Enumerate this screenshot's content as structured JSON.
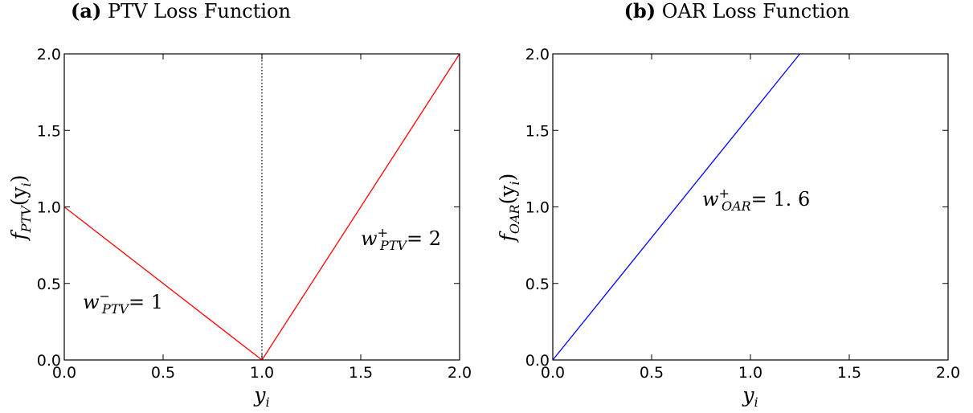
{
  "chart_data": [
    {
      "type": "line",
      "panel_tag": "(a)",
      "title": "PTV Loss Function",
      "xlabel": "y",
      "xlabel_sub": "i",
      "ylabel": "f",
      "ylabel_sub": "PTV",
      "ylabel_arg": "(y",
      "ylabel_arg_sub": "i",
      "ylabel_close": ")",
      "xlim": [
        0.0,
        2.0
      ],
      "ylim": [
        0.0,
        2.0
      ],
      "xticks": [
        "0.0",
        "0.5",
        "1.0",
        "1.5",
        "2.0"
      ],
      "yticks": [
        "0.0",
        "0.5",
        "1.0",
        "1.5",
        "2.0"
      ],
      "grid": false,
      "series": [
        {
          "x": [
            0.0,
            1.0
          ],
          "y": [
            1.0,
            0.0
          ],
          "color": "#ff0000",
          "style": "solid"
        },
        {
          "x": [
            1.0,
            2.0
          ],
          "y": [
            0.0,
            2.0
          ],
          "color": "#ff0000",
          "style": "solid"
        }
      ],
      "vlines": [
        {
          "x": 1.0,
          "color": "#000000",
          "style": "dotted"
        }
      ],
      "annotations": [
        {
          "base": "w",
          "sup": "−",
          "sub": "PTV",
          "rest": "= 1",
          "at_x": 0.1,
          "at_y": 0.35
        },
        {
          "base": "w",
          "sup": "+",
          "sub": "PTV",
          "rest": "= 2",
          "at_x": 1.5,
          "at_y": 0.78
        }
      ]
    },
    {
      "type": "line",
      "panel_tag": "(b)",
      "title": "OAR Loss Function",
      "xlabel": "y",
      "xlabel_sub": "i",
      "ylabel": "f",
      "ylabel_sub": "OAR",
      "ylabel_arg": "(y",
      "ylabel_arg_sub": "i",
      "ylabel_close": ")",
      "xlim": [
        0.0,
        2.0
      ],
      "ylim": [
        0.0,
        2.0
      ],
      "xticks": [
        "0.0",
        "0.5",
        "1.0",
        "1.5",
        "2.0"
      ],
      "yticks": [
        "0.0",
        "0.5",
        "1.0",
        "1.5",
        "2.0"
      ],
      "grid": false,
      "series": [
        {
          "x": [
            0.0,
            1.25
          ],
          "y": [
            0.0,
            2.0
          ],
          "color": "#0000ff",
          "style": "solid"
        }
      ],
      "vlines": [],
      "annotations": [
        {
          "base": "w",
          "sup": "+",
          "sub": "OAR",
          "rest": "= 1. 6",
          "at_x": 0.75,
          "at_y": 1.0
        }
      ]
    }
  ]
}
